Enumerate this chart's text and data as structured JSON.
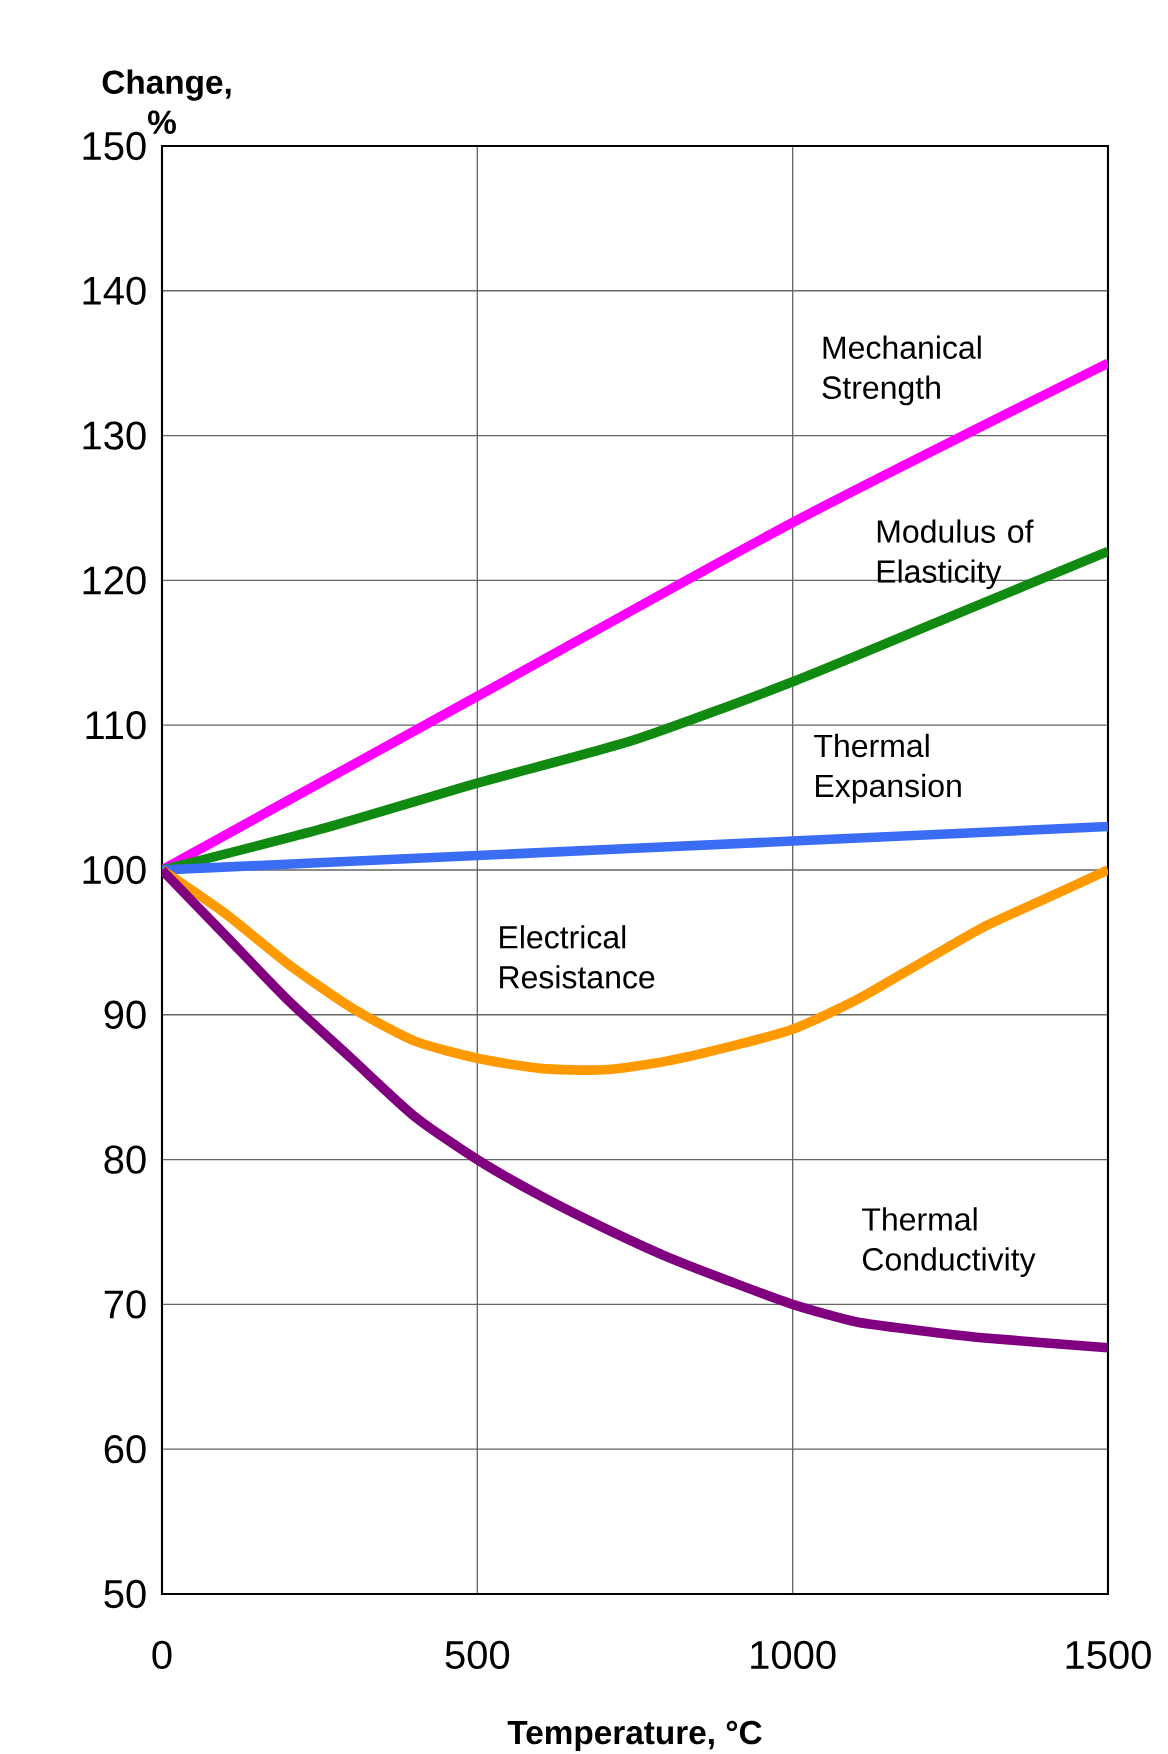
{
  "chart_data": {
    "type": "line",
    "xlabel": "Temperature, °C",
    "ylabel": "Change, %",
    "xlim": [
      0,
      1500
    ],
    "xticks": [
      0,
      500,
      1000,
      1500
    ],
    "ylim": [
      50,
      150
    ],
    "yticks": [
      50,
      60,
      70,
      80,
      90,
      100,
      110,
      120,
      130,
      140,
      150
    ],
    "grid": true,
    "legend": false,
    "marker": "none",
    "line_style": "solid",
    "series": [
      {
        "name": "Mechanical Strength",
        "color": "#ff00ff",
        "x": [
          0,
          500,
          1000,
          1500
        ],
        "values": [
          100,
          112,
          124,
          135
        ]
      },
      {
        "name": "Modulus of Elasticity",
        "color": "#108a10",
        "x": [
          0,
          250,
          500,
          750,
          1000,
          1250,
          1500
        ],
        "values": [
          100,
          102.8,
          106,
          109,
          113,
          117.5,
          122
        ]
      },
      {
        "name": "Thermal Expansion",
        "color": "#3a6cf4",
        "x": [
          0,
          500,
          1000,
          1500
        ],
        "values": [
          100,
          101,
          102,
          103
        ]
      },
      {
        "name": "Electrical Resistance",
        "color": "#ff9900",
        "x": [
          0,
          100,
          200,
          300,
          400,
          500,
          600,
          700,
          800,
          900,
          1000,
          1100,
          1200,
          1300,
          1400,
          1500
        ],
        "values": [
          100,
          97,
          93.5,
          90.5,
          88.2,
          87,
          86.3,
          86.2,
          86.8,
          87.8,
          89,
          91,
          93.5,
          96,
          98,
          100
        ]
      },
      {
        "name": "Thermal Conductivity",
        "color": "#800080",
        "x": [
          0,
          100,
          200,
          300,
          400,
          500,
          600,
          700,
          800,
          900,
          1000,
          1100,
          1200,
          1300,
          1500
        ],
        "values": [
          100,
          95.5,
          91,
          87,
          83,
          80,
          77.5,
          75.3,
          73.3,
          71.6,
          70,
          68.8,
          68.2,
          67.7,
          67
        ]
      }
    ]
  }
}
